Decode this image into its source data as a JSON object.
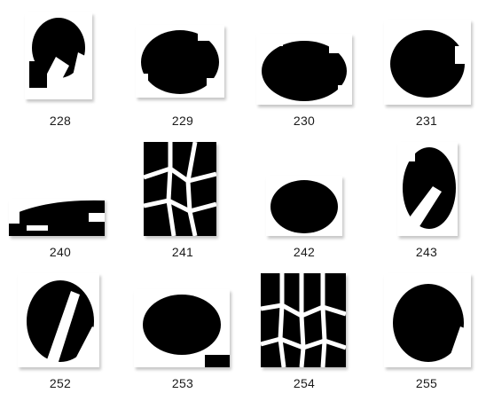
{
  "files": [
    {
      "name": "228",
      "pattern": "blob-streaks"
    },
    {
      "name": "229",
      "pattern": "blob"
    },
    {
      "name": "230",
      "pattern": "blob"
    },
    {
      "name": "231",
      "pattern": "blob"
    },
    {
      "name": "240",
      "pattern": "band"
    },
    {
      "name": "241",
      "pattern": "cells"
    },
    {
      "name": "242",
      "pattern": "blob"
    },
    {
      "name": "243",
      "pattern": "blob-streaks"
    },
    {
      "name": "252",
      "pattern": "blob-streaks"
    },
    {
      "name": "253",
      "pattern": "blob"
    },
    {
      "name": "254",
      "pattern": "cells"
    },
    {
      "name": "255",
      "pattern": "blob-streaks"
    }
  ]
}
